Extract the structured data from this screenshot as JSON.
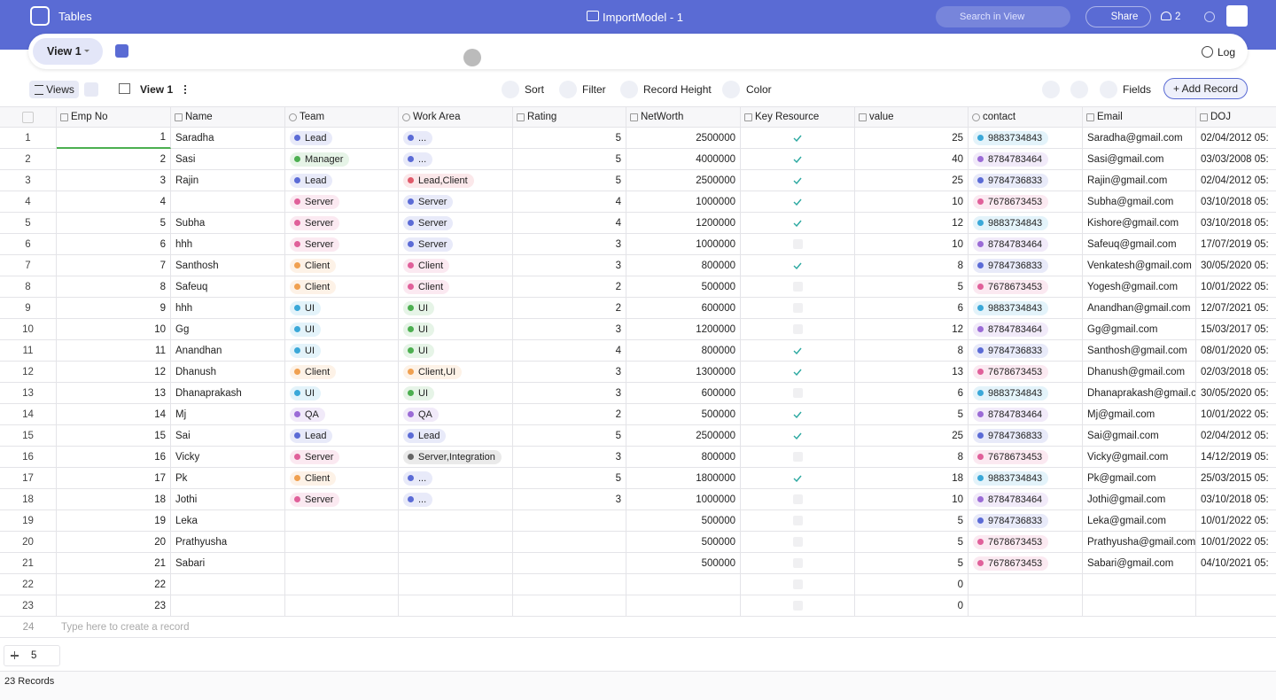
{
  "header": {
    "app": "Tables",
    "model": "ImportModel - 1",
    "search": "Search in View",
    "share": "Share",
    "members": "2"
  },
  "tabs": {
    "active": "View 1",
    "log": "Log"
  },
  "toolbar": {
    "views": "Views",
    "view_name": "View 1",
    "sort": "Sort",
    "filter": "Filter",
    "record_height": "Record Height",
    "color": "Color",
    "fields": "Fields",
    "add_record": "+ Add Record"
  },
  "table": {
    "columns": [
      "Emp No",
      "Name",
      "Team",
      "Work Area",
      "Rating",
      "NetWorth",
      "Key Resource",
      "value",
      "contact",
      "Email",
      "DOJ"
    ],
    "team_colors": {
      "Lead": "#5b6bd6",
      "Manager": "#4caf50",
      "Server": "#e0609a",
      "Client": "#f0a050",
      "UI": "#3aa8d8",
      "QA": "#9b6bd6"
    },
    "work_area_colors": {
      "...": "#5b6bd6",
      "Lead,Client": "#e05a6a",
      "Server": "#5b6bd6",
      "Client": "#e0609a",
      "UI": "#4caf50",
      "Client,UI": "#f0a050",
      "QA": "#9b6bd6",
      "Lead": "#5b6bd6",
      "Server,Integration": "#666666"
    },
    "contact_colors": {
      "9883734843": "#3aa8d8",
      "8784783464": "#9b6bd6",
      "9784736833": "#5b6bd6",
      "7678673453": "#e0609a"
    },
    "rows": [
      [
        1,
        1,
        "Saradha",
        "Lead",
        "...",
        5,
        2500000,
        true,
        25,
        "9883734843",
        "Saradha@gmail.com",
        "02/04/2012 05:"
      ],
      [
        2,
        2,
        "Sasi",
        "Manager",
        "...",
        5,
        4000000,
        true,
        40,
        "8784783464",
        "Sasi@gmail.com",
        "03/03/2008 05:"
      ],
      [
        3,
        3,
        "Rajin",
        "Lead",
        "Lead,Client",
        5,
        2500000,
        true,
        25,
        "9784736833",
        "Rajin@gmail.com",
        "02/04/2012 05:"
      ],
      [
        4,
        4,
        null,
        "Server",
        "Server",
        4,
        1000000,
        true,
        10,
        "7678673453",
        "Subha@gmail.com",
        "03/10/2018 05:"
      ],
      [
        5,
        5,
        "Subha",
        "Server",
        "Server",
        4,
        1200000,
        true,
        12,
        "9883734843",
        "Kishore@gmail.com",
        "03/10/2018 05:"
      ],
      [
        6,
        6,
        "hhh",
        "Server",
        "Server",
        3,
        1000000,
        false,
        10,
        "8784783464",
        "Safeuq@gmail.com",
        "17/07/2019 05:"
      ],
      [
        7,
        7,
        "Santhosh",
        "Client",
        "Client",
        3,
        800000,
        true,
        8,
        "9784736833",
        "Venkatesh@gmail.com",
        "30/05/2020 05:"
      ],
      [
        8,
        8,
        "Safeuq",
        "Client",
        "Client",
        2,
        500000,
        false,
        5,
        "7678673453",
        "Yogesh@gmail.com",
        "10/01/2022 05:"
      ],
      [
        9,
        9,
        "hhh",
        "UI",
        "UI",
        2,
        600000,
        false,
        6,
        "9883734843",
        "Anandhan@gmail.com",
        "12/07/2021 05:"
      ],
      [
        10,
        10,
        "Gg",
        "UI",
        "UI",
        3,
        1200000,
        false,
        12,
        "8784783464",
        "Gg@gmail.com",
        "15/03/2017 05:"
      ],
      [
        11,
        11,
        "Anandhan",
        "UI",
        "UI",
        4,
        800000,
        true,
        8,
        "9784736833",
        "Santhosh@gmail.com",
        "08/01/2020 05:"
      ],
      [
        12,
        12,
        "Dhanush",
        "Client",
        "Client,UI",
        3,
        1300000,
        true,
        13,
        "7678673453",
        "Dhanush@gmail.com",
        "02/03/2018 05:"
      ],
      [
        13,
        13,
        "Dhanaprakash",
        "UI",
        "UI",
        3,
        600000,
        false,
        6,
        "9883734843",
        "Dhanaprakash@gmail.c...",
        "30/05/2020 05:"
      ],
      [
        14,
        14,
        "Mj",
        "QA",
        "QA",
        2,
        500000,
        true,
        5,
        "8784783464",
        "Mj@gmail.com",
        "10/01/2022 05:"
      ],
      [
        15,
        15,
        "Sai",
        "Lead",
        "Lead",
        5,
        2500000,
        true,
        25,
        "9784736833",
        "Sai@gmail.com",
        "02/04/2012 05:"
      ],
      [
        16,
        16,
        "Vicky",
        "Server",
        "Server,Integration",
        3,
        800000,
        false,
        8,
        "7678673453",
        "Vicky@gmail.com",
        "14/12/2019 05:"
      ],
      [
        17,
        17,
        "Pk",
        "Client",
        "...",
        5,
        1800000,
        true,
        18,
        "9883734843",
        "Pk@gmail.com",
        "25/03/2015 05:"
      ],
      [
        18,
        18,
        "Jothi",
        "Server",
        "...",
        3,
        1000000,
        false,
        10,
        "8784783464",
        "Jothi@gmail.com",
        "03/10/2018 05:"
      ],
      [
        19,
        19,
        "Leka",
        null,
        null,
        null,
        500000,
        false,
        5,
        "9784736833",
        "Leka@gmail.com",
        "10/01/2022 05:"
      ],
      [
        20,
        20,
        "Prathyusha",
        null,
        null,
        null,
        500000,
        false,
        5,
        "7678673453",
        "Prathyusha@gmail.com",
        "10/01/2022 05:"
      ],
      [
        21,
        21,
        "Sabari",
        null,
        null,
        null,
        500000,
        false,
        5,
        "7678673453",
        "Sabari@gmail.com",
        "04/10/2021 05:"
      ],
      [
        22,
        22,
        null,
        null,
        null,
        null,
        null,
        false,
        0,
        null,
        null,
        null
      ],
      [
        23,
        23,
        null,
        null,
        null,
        null,
        null,
        false,
        0,
        null,
        null,
        null
      ]
    ],
    "new_row": {
      "index": 24,
      "placeholder": "Type here to create a record"
    }
  },
  "footer": {
    "group_count": "5",
    "records": "23 Records"
  }
}
